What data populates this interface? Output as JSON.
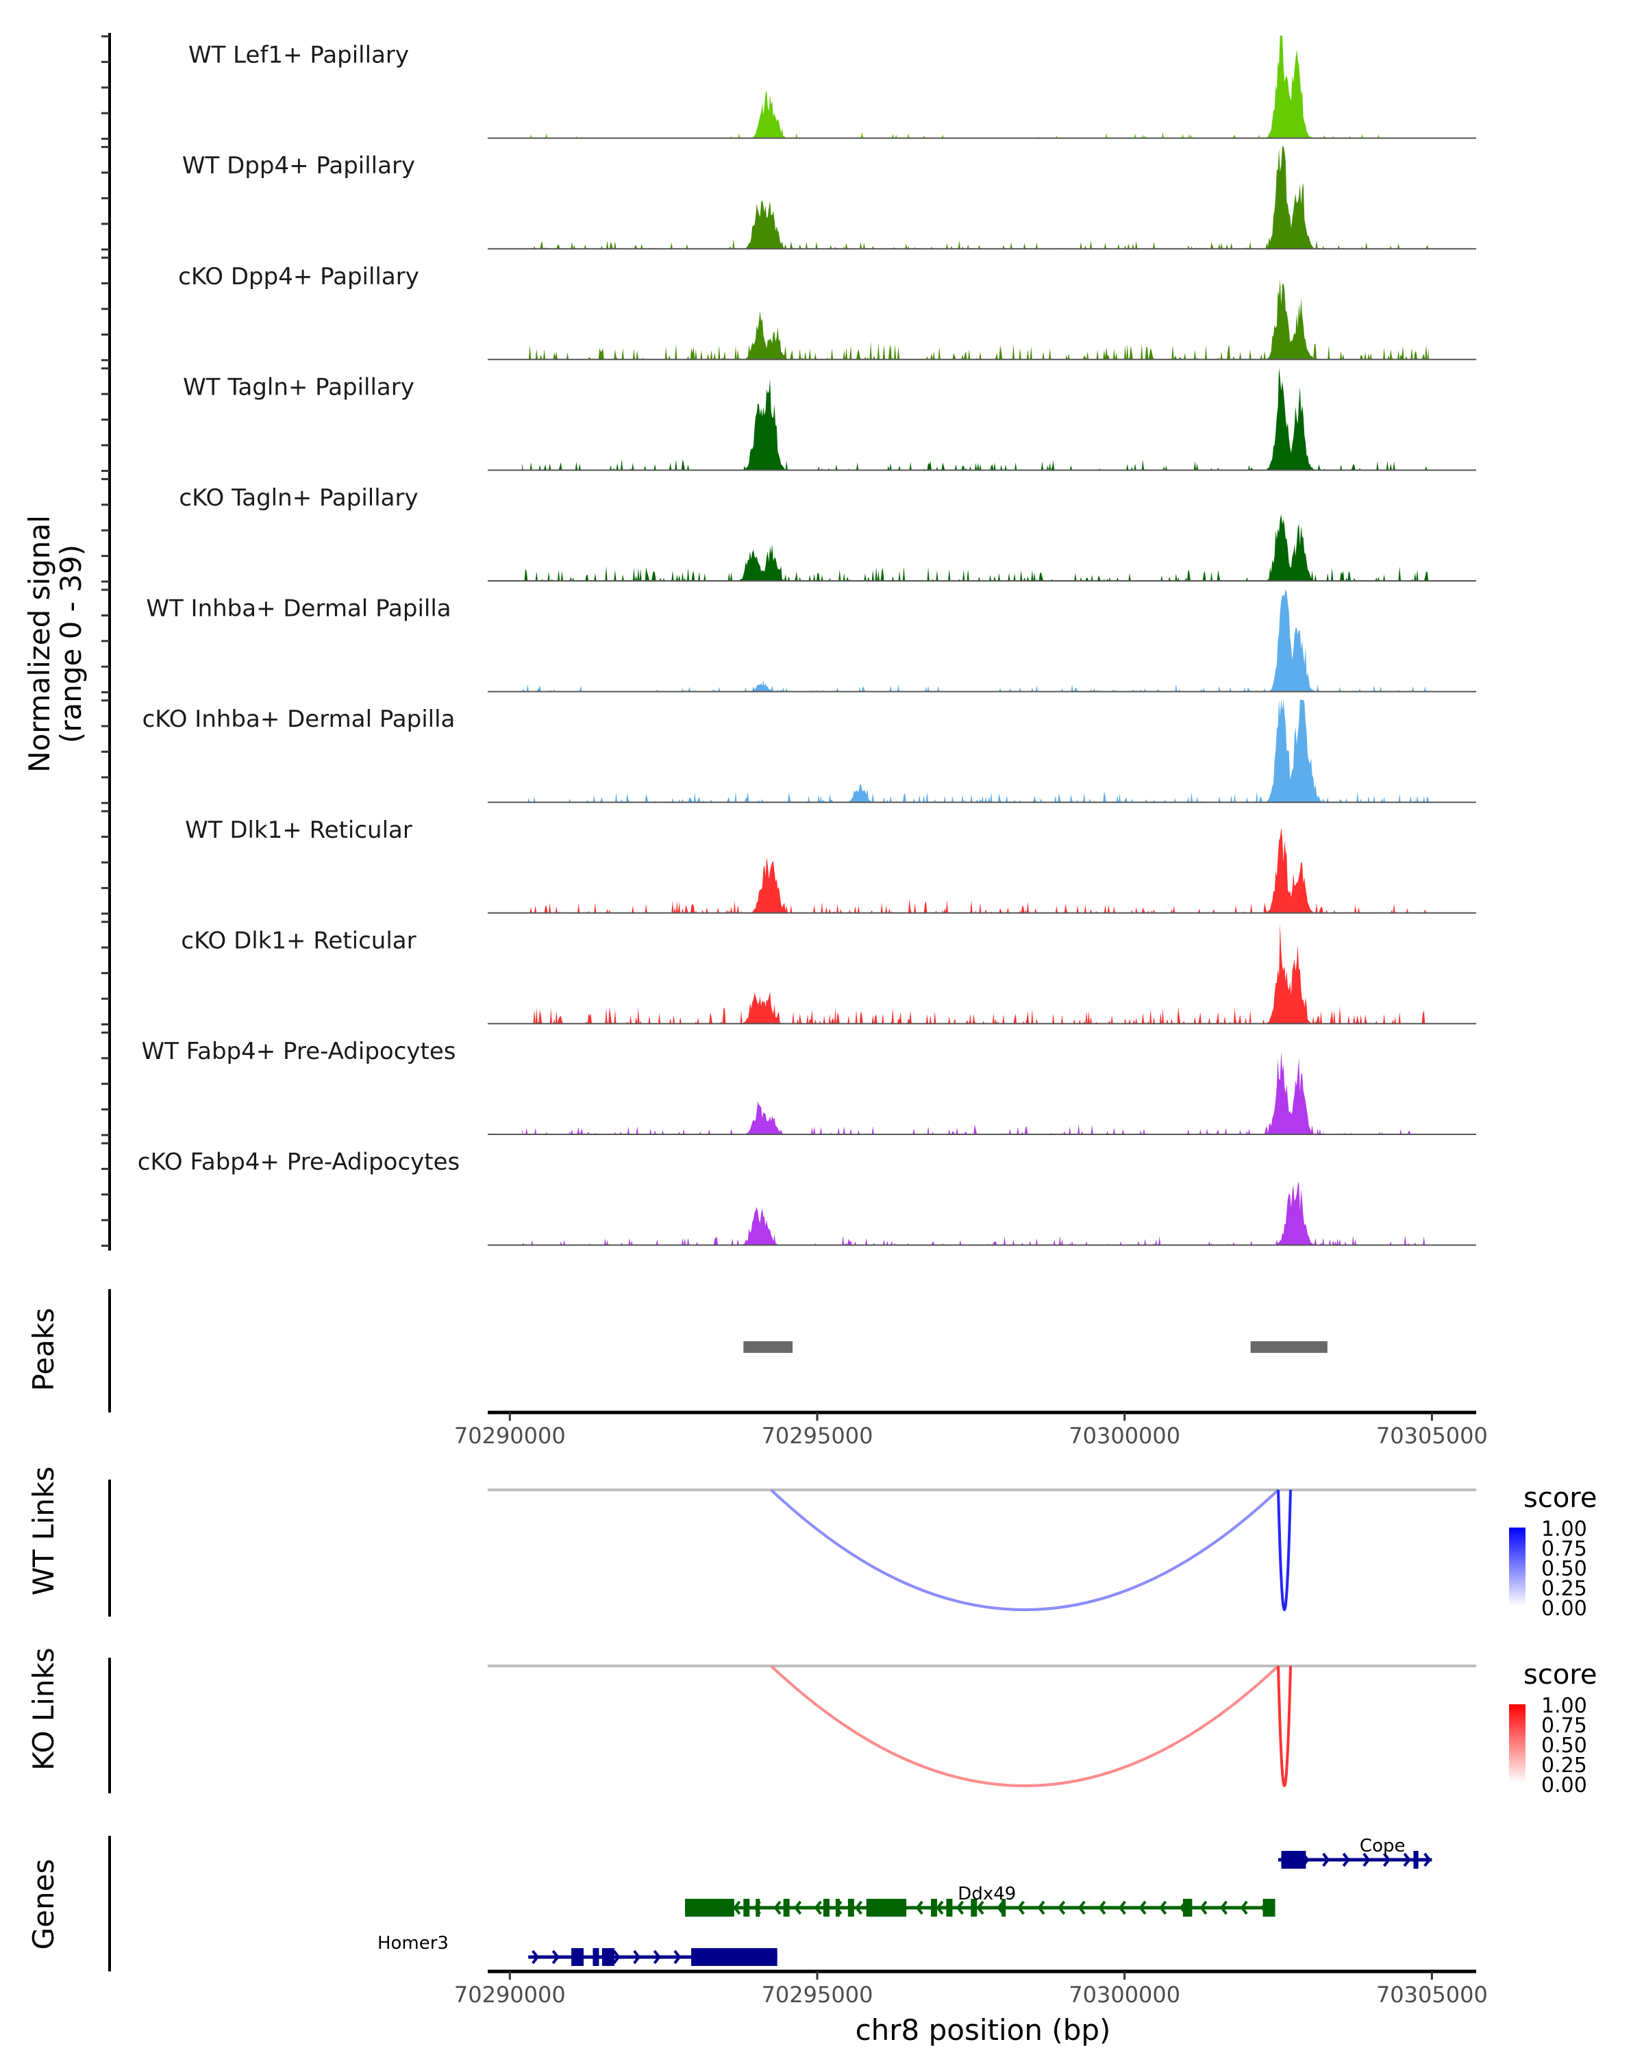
{
  "chart_data": {
    "type": "area",
    "title": "",
    "region": "chr8:70289640-70305720",
    "xlabel": "chr8 position (bp)",
    "xlim": [
      70289640,
      70305720
    ],
    "x_ticks": [
      70290000,
      70295000,
      70300000,
      70305000
    ],
    "x_tick_labels": [
      "70290000",
      "70295000",
      "70300000",
      "70305000"
    ],
    "coverage": {
      "ylabel_line1": "Normalized signal",
      "ylabel_line2": "(range 0 - 39)",
      "ylim": [
        0,
        39
      ],
      "tracks": [
        {
          "name": "WT Lef1+ Papillary",
          "color": "#66CC00",
          "peaks": [
            [
              70294150,
              11
            ],
            [
              70294280,
              9
            ],
            [
              70302550,
              36
            ],
            [
              70302800,
              28
            ]
          ],
          "noise": 0.7,
          "seed": 1
        },
        {
          "name": "WT Dpp4+ Papillary",
          "color": "#458B00",
          "peaks": [
            [
              70294050,
              16
            ],
            [
              70294250,
              14
            ],
            [
              70302550,
              39
            ],
            [
              70302850,
              24
            ]
          ],
          "noise": 1.0,
          "seed": 2
        },
        {
          "name": "cKO Dpp4+ Papillary",
          "color": "#458B00",
          "peaks": [
            [
              70294050,
              13
            ],
            [
              70294300,
              9
            ],
            [
              70302550,
              28
            ],
            [
              70302850,
              17
            ]
          ],
          "noise": 1.8,
          "seed": 3
        },
        {
          "name": "WT Tagln+ Papillary",
          "color": "#006400",
          "peaks": [
            [
              70294050,
              24
            ],
            [
              70294250,
              26
            ],
            [
              70302550,
              37
            ],
            [
              70302850,
              22
            ]
          ],
          "noise": 1.2,
          "seed": 4
        },
        {
          "name": "cKO Tagln+ Papillary",
          "color": "#006400",
          "peaks": [
            [
              70293950,
              12
            ],
            [
              70294250,
              11
            ],
            [
              70302550,
              26
            ],
            [
              70302850,
              19
            ]
          ],
          "noise": 1.6,
          "seed": 5
        },
        {
          "name": "WT Inhba+ Dermal Papilla",
          "color": "#5DADEC",
          "peaks": [
            [
              70294100,
              3
            ],
            [
              70302600,
              39
            ],
            [
              70302850,
              23
            ]
          ],
          "noise": 0.8,
          "seed": 6
        },
        {
          "name": "cKO Inhba+ Dermal Papilla",
          "color": "#5DADEC",
          "peaks": [
            [
              70295700,
              6
            ],
            [
              70302550,
              36
            ],
            [
              70302850,
              35
            ],
            [
              70303000,
              12
            ]
          ],
          "noise": 1.2,
          "seed": 7
        },
        {
          "name": "WT Dlk1+ Reticular",
          "color": "#FF3030",
          "peaks": [
            [
              70294150,
              15
            ],
            [
              70294300,
              12
            ],
            [
              70302550,
              28
            ],
            [
              70302850,
              17
            ]
          ],
          "noise": 1.4,
          "seed": 8
        },
        {
          "name": "cKO Dlk1+ Reticular",
          "color": "#FF3030",
          "peaks": [
            [
              70294000,
              10
            ],
            [
              70294200,
              9
            ],
            [
              70302550,
              27
            ],
            [
              70302800,
              21
            ]
          ],
          "noise": 1.8,
          "seed": 9
        },
        {
          "name": "WT Fabp4+ Pre-Adipocytes",
          "color": "#B23AEE",
          "peaks": [
            [
              70294050,
              9
            ],
            [
              70294250,
              6
            ],
            [
              70302550,
              28
            ],
            [
              70302850,
              23
            ]
          ],
          "noise": 1.1,
          "seed": 10
        },
        {
          "name": "cKO Fabp4+ Pre-Adipocytes",
          "color": "#B23AEE",
          "peaks": [
            [
              70294000,
              10
            ],
            [
              70294150,
              8
            ],
            [
              70302700,
              16
            ],
            [
              70302850,
              16
            ]
          ],
          "noise": 1.1,
          "seed": 11
        }
      ]
    },
    "peaks_track": {
      "label": "Peaks",
      "color": "#696969",
      "regions": [
        [
          70293800,
          70294600
        ],
        [
          70302050,
          70303300
        ]
      ]
    },
    "links_tracks": [
      {
        "label": "WT Links",
        "links": [
          {
            "start": 70294250,
            "end": 70302500,
            "score": 0.45
          },
          {
            "start": 70302500,
            "end": 70302700,
            "score": 0.85
          }
        ],
        "legend": {
          "title": "score",
          "low_color": "#FFFFFF",
          "high_color": "#0000FF",
          "ticks": [
            "1.00",
            "0.75",
            "0.50",
            "0.25",
            "0.00"
          ]
        }
      },
      {
        "label": "KO Links",
        "links": [
          {
            "start": 70294250,
            "end": 70302500,
            "score": 0.45
          },
          {
            "start": 70302500,
            "end": 70302700,
            "score": 0.8
          }
        ],
        "legend": {
          "title": "score",
          "low_color": "#FFFFFF",
          "high_color": "#FF0000",
          "ticks": [
            "1.00",
            "0.75",
            "0.50",
            "0.25",
            "0.00"
          ]
        }
      }
    ],
    "genes_track": {
      "label": "Genes",
      "genes": [
        {
          "name": "Cope",
          "strand": "+",
          "color": "#00008B",
          "row": 0,
          "start": 70302500,
          "end": 70305000,
          "exons": [
            [
              70302550,
              70302950
            ],
            [
              70304700,
              70304780
            ]
          ]
        },
        {
          "name": "Ddx49",
          "strand": "-",
          "color": "#006400",
          "row": 1,
          "start": 70292850,
          "end": 70302450,
          "exons": [
            [
              70292850,
              70293650
            ],
            [
              70293800,
              70293900
            ],
            [
              70294000,
              70294050
            ],
            [
              70294450,
              70294550
            ],
            [
              70295100,
              70295200
            ],
            [
              70295300,
              70295350
            ],
            [
              70295500,
              70295600
            ],
            [
              70295800,
              70296450
            ],
            [
              70296850,
              70296950
            ],
            [
              70297100,
              70297200
            ],
            [
              70297500,
              70297600
            ],
            [
              70298000,
              70298050
            ],
            [
              70300950,
              70301100
            ],
            [
              70302250,
              70302450
            ]
          ]
        },
        {
          "name": "Homer3",
          "strand": "+",
          "color": "#00008B",
          "row": 2,
          "start": 70290300,
          "end": 70294350,
          "exons": [
            [
              70291000,
              70291200
            ],
            [
              70291350,
              70291450
            ],
            [
              70291500,
              70291700
            ],
            [
              70292950,
              70294350
            ]
          ]
        }
      ]
    }
  },
  "section_labels": {
    "coverage_ylabel_line1": "Normalized signal",
    "coverage_ylabel_line2": "(range 0 - 39)",
    "peaks": "Peaks",
    "wt_links": "WT Links",
    "ko_links": "KO Links",
    "genes": "Genes"
  }
}
